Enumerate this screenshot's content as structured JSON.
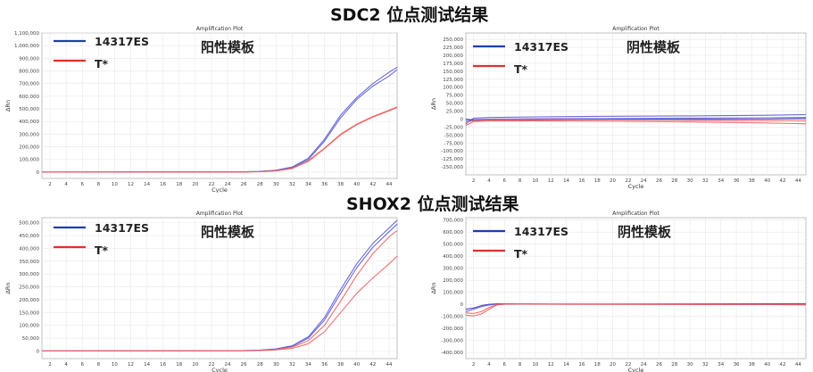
{
  "titles": {
    "sdc2": "SDC2 位点测试结果",
    "shox2": "SHOX2 位点测试结果"
  },
  "colors": {
    "positive_ref": "#1f3fa8",
    "sample": "#e0302a",
    "blue_curves": "#5b5bd6",
    "red_curves": "#ef5f5f",
    "grid": "#e8e8e8"
  },
  "chart_data": [
    {
      "id": "sdc2-positive",
      "type": "line",
      "title": "Amplification Plot",
      "xlabel": "Cycle",
      "ylabel": "ΔRn",
      "annotation": "阳性模板",
      "xlim": [
        1,
        45
      ],
      "ylim": [
        -50000,
        1100000
      ],
      "yticks": [
        0,
        100000,
        200000,
        300000,
        400000,
        500000,
        600000,
        700000,
        800000,
        900000,
        1000000,
        1100000
      ],
      "ytick_labels": [
        "0",
        "100,000",
        "200,000",
        "300,000",
        "400,000",
        "500,000",
        "600,000",
        "700,000",
        "800,000",
        "900,000",
        "1,000,000",
        "1,100,000"
      ],
      "xticks": [
        2,
        4,
        6,
        8,
        10,
        12,
        14,
        16,
        18,
        20,
        22,
        24,
        26,
        28,
        30,
        32,
        34,
        36,
        38,
        40,
        42,
        44
      ],
      "legend": [
        {
          "label": "14317ES",
          "color": "#1f3fa8"
        },
        {
          "label": "T*",
          "color": "#e0302a"
        }
      ],
      "x": [
        1,
        26,
        28,
        30,
        32,
        34,
        36,
        38,
        40,
        42,
        44,
        45
      ],
      "series": [
        {
          "color": "#5b5bd6",
          "values": [
            0,
            2000,
            5000,
            15000,
            40000,
            110000,
            260000,
            450000,
            590000,
            700000,
            790000,
            830000
          ]
        },
        {
          "color": "#5b5bd6",
          "values": [
            0,
            2000,
            4000,
            12000,
            35000,
            100000,
            245000,
            430000,
            575000,
            680000,
            760000,
            810000
          ]
        },
        {
          "color": "#ef5f5f",
          "values": [
            0,
            1000,
            3000,
            10000,
            30000,
            90000,
            190000,
            300000,
            380000,
            440000,
            490000,
            515000
          ]
        },
        {
          "color": "#ef5f5f",
          "values": [
            0,
            1000,
            3000,
            9000,
            28000,
            85000,
            185000,
            295000,
            375000,
            435000,
            485000,
            510000
          ]
        }
      ]
    },
    {
      "id": "sdc2-negative",
      "type": "line",
      "title": "Amplification Plot",
      "xlabel": "Cycle",
      "ylabel": "ΔRn",
      "annotation": "阴性模板",
      "xlim": [
        1,
        45
      ],
      "ylim": [
        -175000,
        270000
      ],
      "yticks": [
        -150000,
        -125000,
        -100000,
        -75000,
        -50000,
        -25000,
        0,
        25000,
        50000,
        75000,
        100000,
        125000,
        150000,
        175000,
        200000,
        225000,
        250000
      ],
      "ytick_labels": [
        "-150,000",
        "-125,000",
        "-100,000",
        "-75,000",
        "-50,000",
        "-25,000",
        "0",
        "25,000",
        "50,000",
        "75,000",
        "100,000",
        "125,000",
        "150,000",
        "175,000",
        "200,000",
        "225,000",
        "250,000"
      ],
      "xticks": [
        2,
        4,
        6,
        8,
        10,
        12,
        14,
        16,
        18,
        20,
        22,
        24,
        26,
        28,
        30,
        32,
        34,
        36,
        38,
        40,
        42,
        44
      ],
      "legend": [
        {
          "label": "14317ES",
          "color": "#1f3fa8"
        },
        {
          "label": "T*",
          "color": "#e0302a"
        }
      ],
      "x": [
        1,
        2,
        4,
        10,
        20,
        30,
        40,
        45
      ],
      "series": [
        {
          "color": "#5b5bd6",
          "values": [
            -15000,
            3000,
            5000,
            7000,
            9000,
            10000,
            12000,
            14000
          ]
        },
        {
          "color": "#5b5bd6",
          "values": [
            -5000,
            -2000,
            0,
            1000,
            2000,
            3000,
            4000,
            5000
          ]
        },
        {
          "color": "#3a3ab8",
          "values": [
            0,
            -3000,
            -4000,
            -3000,
            -2000,
            -1000,
            0,
            1000
          ]
        },
        {
          "color": "#ef5f5f",
          "values": [
            -20000,
            -8000,
            -6000,
            -6000,
            -7000,
            -9000,
            -12000,
            -15000
          ]
        },
        {
          "color": "#ef5f5f",
          "values": [
            -10000,
            -5000,
            -3000,
            -2000,
            -3000,
            -4000,
            -5000,
            -6000
          ]
        }
      ]
    },
    {
      "id": "shox2-positive",
      "type": "line",
      "title": "Amplification Plot",
      "xlabel": "Cycle",
      "ylabel": "ΔRn",
      "annotation": "阳性模板",
      "xlim": [
        1,
        45
      ],
      "ylim": [
        -30000,
        520000
      ],
      "yticks": [
        0,
        50000,
        100000,
        150000,
        200000,
        250000,
        300000,
        350000,
        400000,
        450000,
        500000
      ],
      "ytick_labels": [
        "0",
        "50,000",
        "100,000",
        "150,000",
        "200,000",
        "250,000",
        "300,000",
        "350,000",
        "400,000",
        "450,000",
        "500,000"
      ],
      "xticks": [
        2,
        4,
        6,
        8,
        10,
        12,
        14,
        16,
        18,
        20,
        22,
        24,
        26,
        28,
        30,
        32,
        34,
        36,
        38,
        40,
        42,
        44
      ],
      "legend": [
        {
          "label": "14317ES",
          "color": "#1f3fa8"
        },
        {
          "label": "T*",
          "color": "#e0302a"
        }
      ],
      "x": [
        1,
        26,
        28,
        30,
        32,
        34,
        36,
        38,
        40,
        42,
        44,
        45
      ],
      "series": [
        {
          "color": "#5b5bd6",
          "values": [
            0,
            1000,
            3000,
            8000,
            20000,
            55000,
            130000,
            240000,
            340000,
            420000,
            480000,
            510000
          ]
        },
        {
          "color": "#5b5bd6",
          "values": [
            0,
            1000,
            3000,
            7000,
            18000,
            50000,
            120000,
            225000,
            325000,
            405000,
            465000,
            495000
          ]
        },
        {
          "color": "#ef5f5f",
          "values": [
            0,
            1000,
            2000,
            6000,
            15000,
            40000,
            100000,
            195000,
            295000,
            380000,
            445000,
            470000
          ]
        },
        {
          "color": "#ef5f5f",
          "values": [
            0,
            500,
            1500,
            4000,
            10000,
            28000,
            75000,
            150000,
            225000,
            285000,
            340000,
            370000
          ]
        }
      ]
    },
    {
      "id": "shox2-negative",
      "type": "line",
      "title": "Amplification Plot",
      "xlabel": "Cycle",
      "ylabel": "ΔRn",
      "annotation": "阴性模板",
      "xlim": [
        1,
        45
      ],
      "ylim": [
        -450000,
        720000
      ],
      "yticks": [
        -400000,
        -300000,
        -200000,
        -100000,
        0,
        100000,
        200000,
        300000,
        400000,
        500000,
        600000,
        700000
      ],
      "ytick_labels": [
        "-400,000",
        "-300,000",
        "-200,000",
        "-100,000",
        "0",
        "100,000",
        "200,000",
        "300,000",
        "400,000",
        "500,000",
        "600,000",
        "700,000"
      ],
      "xticks": [
        2,
        4,
        6,
        8,
        10,
        12,
        14,
        16,
        18,
        20,
        22,
        24,
        26,
        28,
        30,
        32,
        34,
        36,
        38,
        40,
        42,
        44
      ],
      "legend": [
        {
          "label": "14317ES",
          "color": "#1f3fa8"
        },
        {
          "label": "T*",
          "color": "#e0302a"
        }
      ],
      "x": [
        1,
        2,
        3,
        4,
        5,
        6,
        8,
        12,
        20,
        30,
        40,
        45
      ],
      "series": [
        {
          "color": "#3a3ab8",
          "values": [
            -40000,
            -30000,
            -10000,
            0,
            5000,
            5000,
            4000,
            3000,
            3000,
            4000,
            5000,
            6000
          ]
        },
        {
          "color": "#5b5bd6",
          "values": [
            -60000,
            -40000,
            -20000,
            -5000,
            2000,
            4000,
            3000,
            2000,
            2000,
            2000,
            3000,
            4000
          ]
        },
        {
          "color": "#ef5f5f",
          "values": [
            -90000,
            -95000,
            -80000,
            -40000,
            -5000,
            2000,
            3000,
            2000,
            1000,
            0,
            -2000,
            -3000
          ]
        },
        {
          "color": "#ef5f5f",
          "values": [
            -70000,
            -75000,
            -60000,
            -25000,
            -2000,
            1000,
            2000,
            1000,
            0,
            -1000,
            -2000,
            -4000
          ]
        }
      ]
    }
  ]
}
